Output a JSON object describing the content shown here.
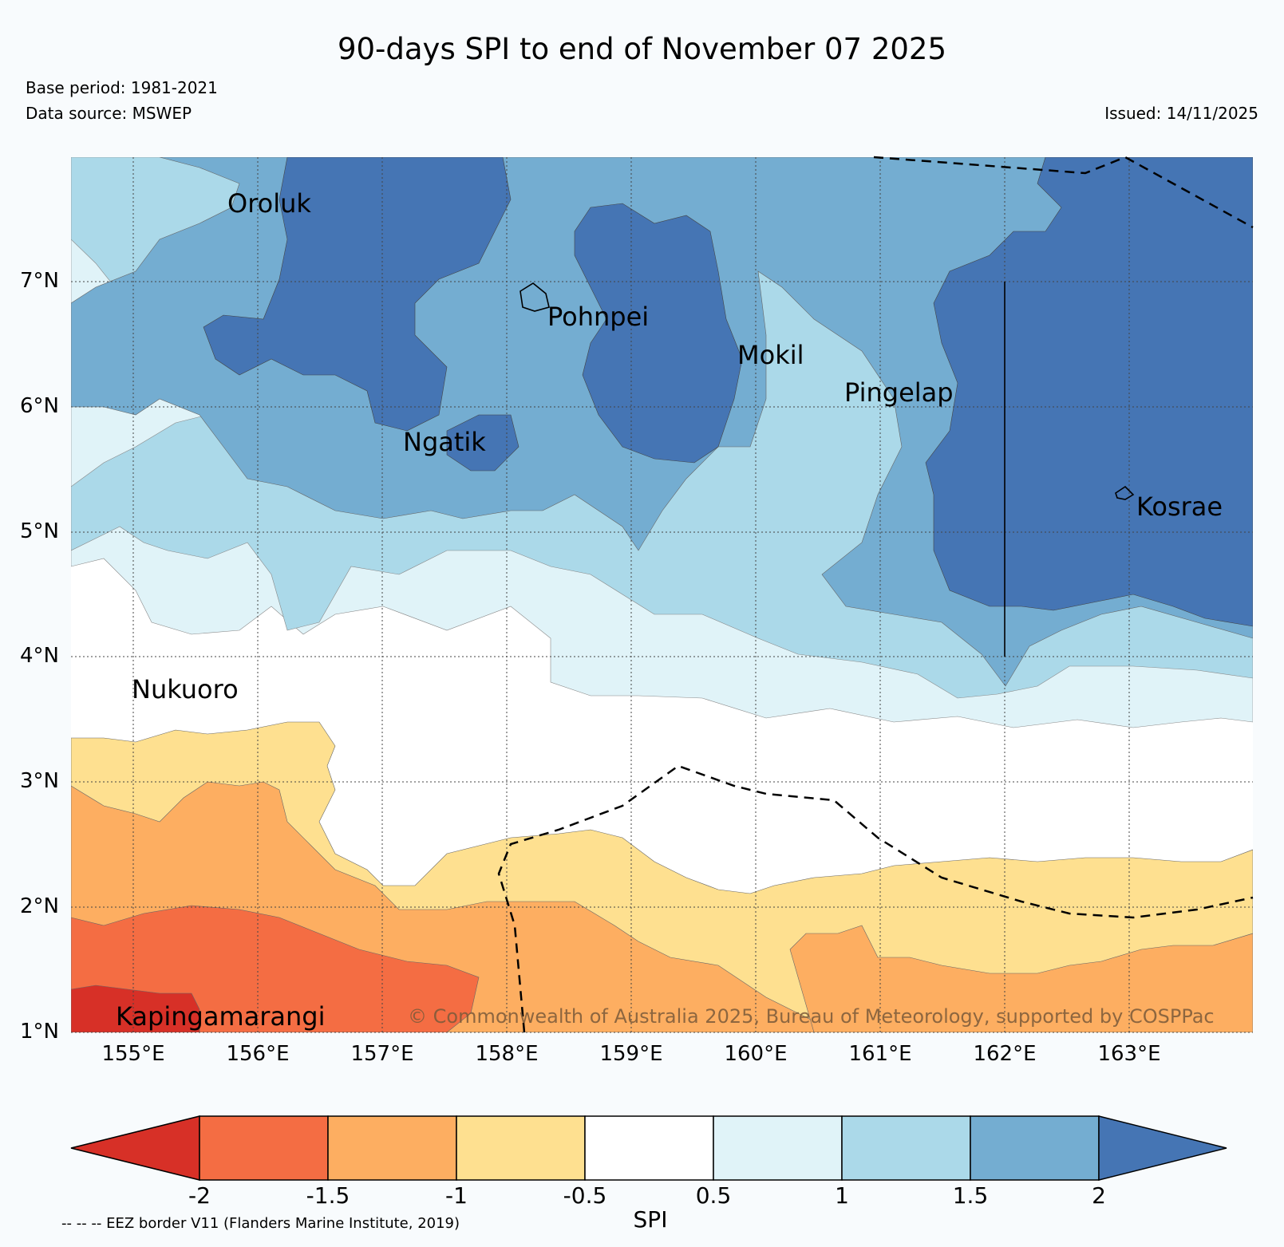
{
  "header": {
    "title": "90-days SPI to end of November 07 2025",
    "base_period": "Base period: 1981-2021",
    "data_source": "Data source: MSWEP",
    "issued": "Issued: 14/11/2025"
  },
  "map": {
    "lon_range": [
      154.5,
      164
    ],
    "lat_range": [
      1,
      8
    ],
    "x_ticks": [
      "155°E",
      "156°E",
      "157°E",
      "158°E",
      "159°E",
      "160°E",
      "161°E",
      "162°E",
      "163°E"
    ],
    "y_ticks": [
      "7°N",
      "6°N",
      "5°N",
      "4°N",
      "3°N",
      "2°N",
      "1°N"
    ],
    "places": [
      {
        "name": "Oroluk"
      },
      {
        "name": "Pohnpei"
      },
      {
        "name": "Mokil"
      },
      {
        "name": "Pingelap"
      },
      {
        "name": "Ngatik"
      },
      {
        "name": "Kosrae"
      },
      {
        "name": "Nukuoro"
      },
      {
        "name": "Kapingamarangi"
      }
    ],
    "copyright": "© Commonwealth of Australia 2025, Bureau of Meteorology, supported by COSPPac"
  },
  "colorbar": {
    "title": "SPI",
    "labels": [
      "-2",
      "-1.5",
      "-1",
      "-0.5",
      "0.5",
      "1",
      "1.5",
      "2"
    ],
    "colors": [
      "#d73027",
      "#f46d43",
      "#fdae61",
      "#fee090",
      "#ffffff",
      "#e0f3f8",
      "#abd9e9",
      "#74add1",
      "#4575b4"
    ]
  },
  "footer": {
    "eez_note": "-- -- -- EEZ border V11 (Flanders Marine Institute, 2019)"
  }
}
